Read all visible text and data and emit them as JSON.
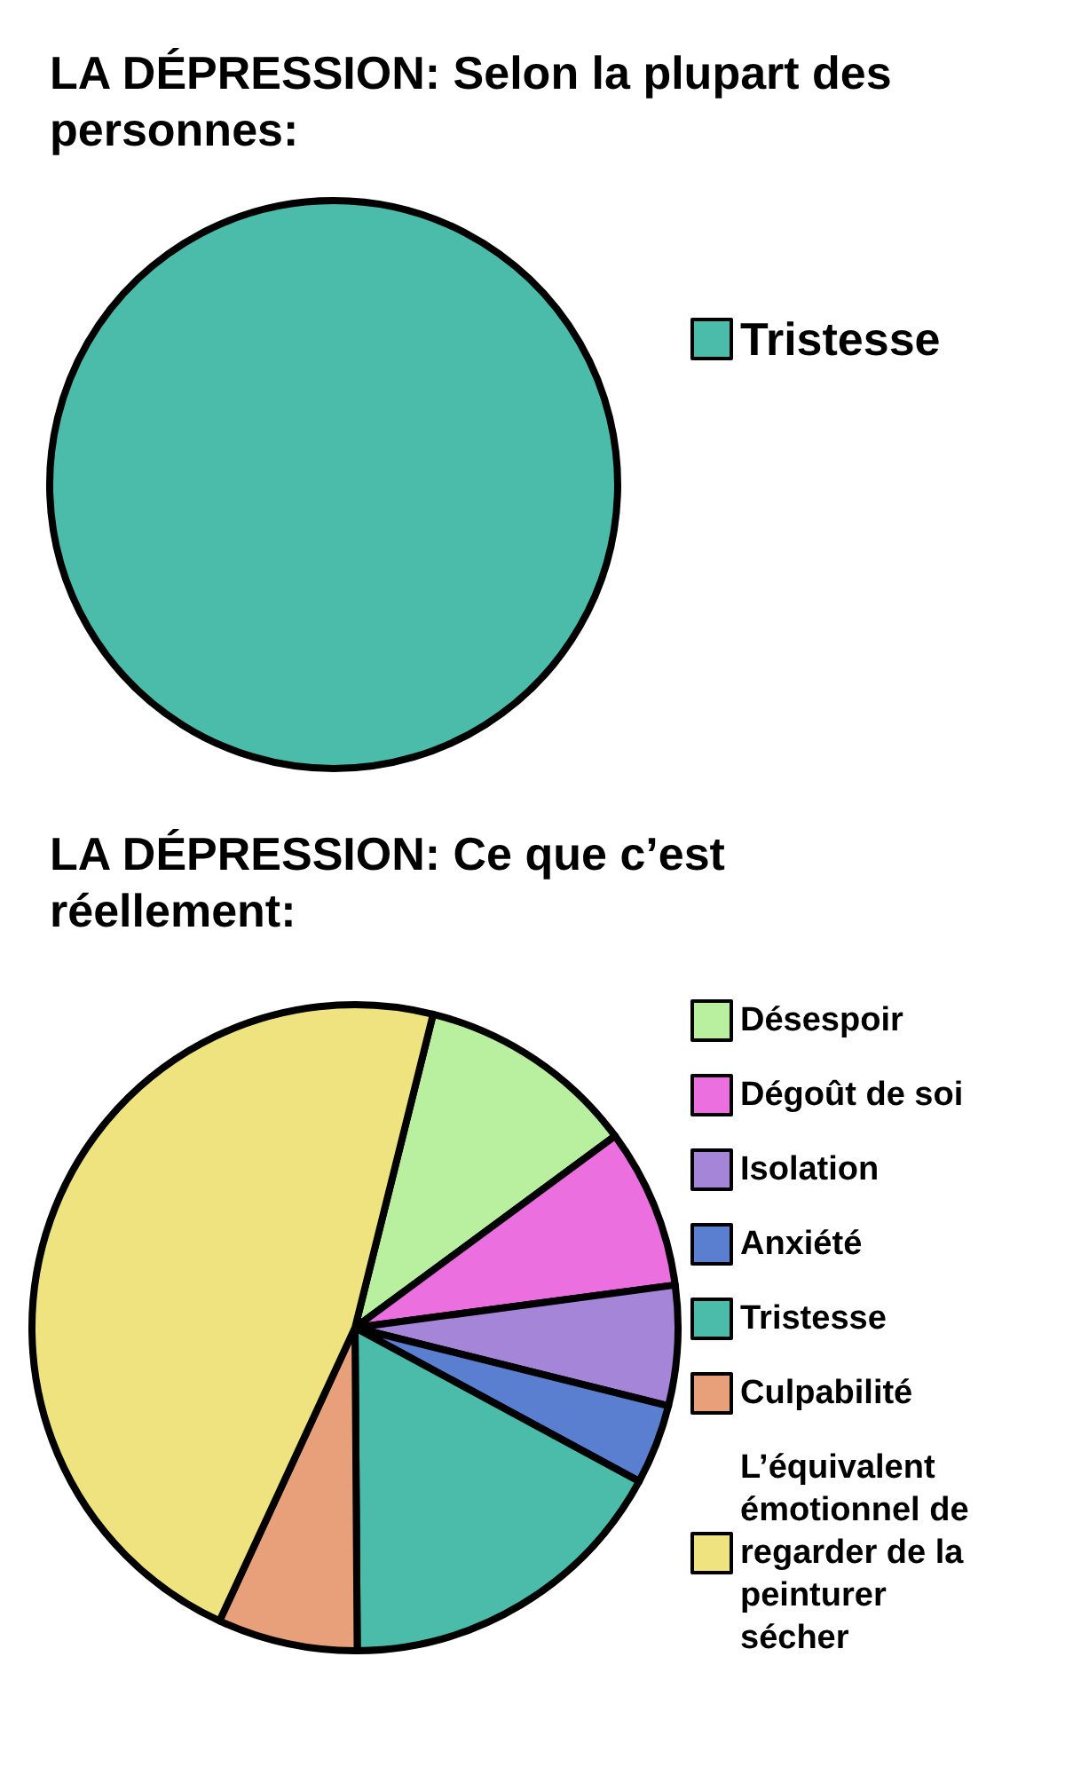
{
  "chart_data": [
    {
      "type": "pie",
      "title": "LA DÉPRESSION: Selon la plupart des personnes:",
      "categories": [
        "Tristesse"
      ],
      "values": [
        100
      ],
      "colors": [
        "#4bbcaa"
      ],
      "legend": "right"
    },
    {
      "type": "pie",
      "title": "LA DÉPRESSION: Ce que c’est réellement:",
      "categories": [
        "Désespoir",
        "Dégoût de soi",
        "Isolation",
        "Anxiété",
        "Tristesse",
        "Culpabilité",
        "L’équivalent émotionnel de regarder de la peinturer sécher"
      ],
      "values": [
        11,
        8,
        6,
        4,
        17,
        7,
        47
      ],
      "colors": [
        "#b9f0a0",
        "#ec6fe0",
        "#a485d8",
        "#5b7fd0",
        "#4bbcaa",
        "#e8a07a",
        "#efe37f"
      ],
      "legend": "right"
    }
  ]
}
